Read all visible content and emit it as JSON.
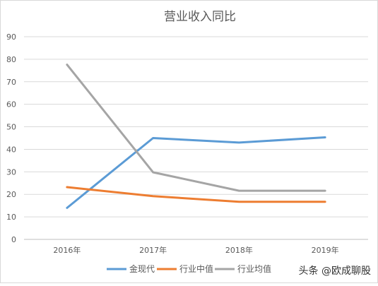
{
  "watermark": "头条 @欧成聊股",
  "chart_data": {
    "type": "line",
    "title": "营业收入同比",
    "xlabel": "",
    "ylabel": "",
    "categories": [
      "2016年",
      "2017年",
      "2018年",
      "2019年"
    ],
    "ylim": [
      0,
      90
    ],
    "yticks": [
      0,
      10,
      20,
      30,
      40,
      50,
      60,
      70,
      80,
      90
    ],
    "grid": true,
    "legend_position": "bottom",
    "series": [
      {
        "name": "金现代",
        "color": "#5B9BD5",
        "values": [
          14,
          45,
          43,
          45.3
        ]
      },
      {
        "name": "行业中值",
        "color": "#ED7D31",
        "values": [
          23.2,
          19.2,
          16.7,
          16.7
        ]
      },
      {
        "name": "行业均值",
        "color": "#A5A5A5",
        "values": [
          77.6,
          29.8,
          21.6,
          21.6
        ]
      }
    ]
  }
}
